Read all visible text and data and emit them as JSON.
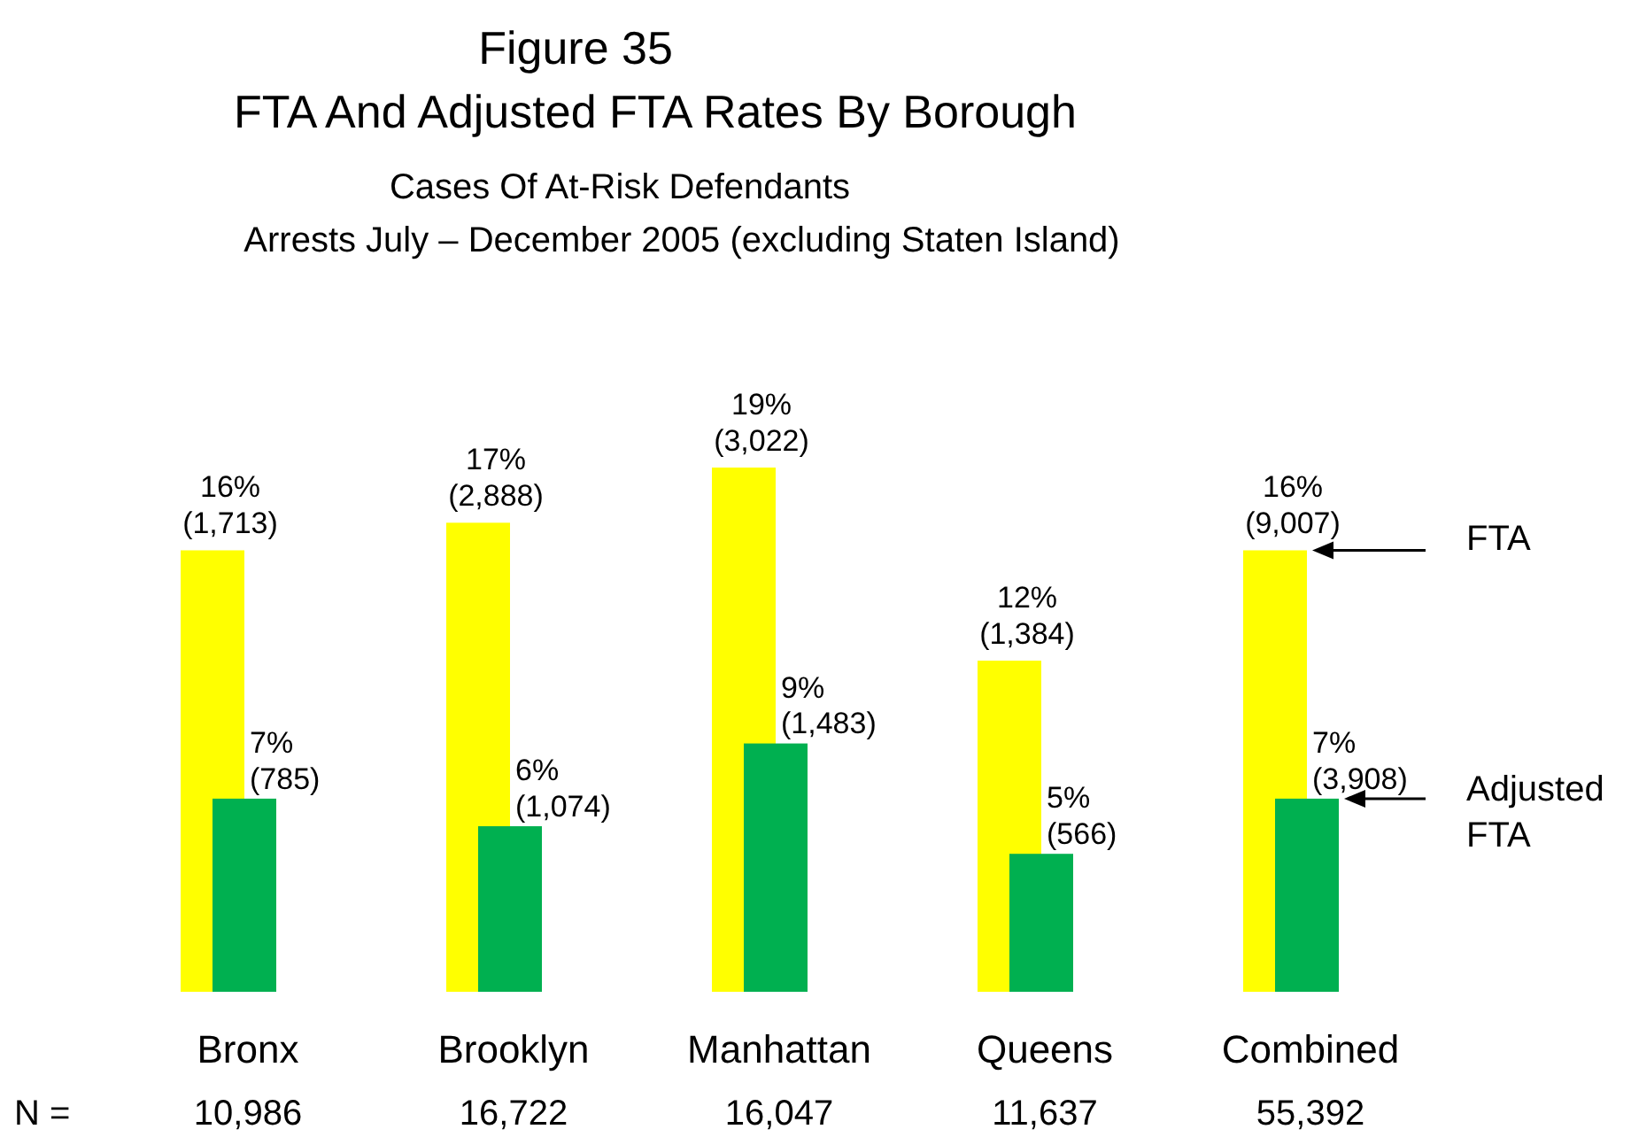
{
  "chart_data": {
    "type": "bar",
    "title": "Figure 35\nFTA And Adjusted FTA Rates By Borough",
    "subtitle": "Cases Of At-Risk Defendants\nArrests July – December 2005 (excluding Staten Island)",
    "categories": [
      "Bronx",
      "Brooklyn",
      "Manhattan",
      "Queens",
      "Combined"
    ],
    "series": [
      {
        "name": "FTA",
        "color": "#ffff00",
        "values": [
          16,
          17,
          19,
          12,
          16
        ],
        "value_labels": [
          "16%\n(1,713)",
          "17%\n(2,888)",
          "19%\n(3,022)",
          "12%\n(1,384)",
          "16%\n(9,007)"
        ]
      },
      {
        "name": "Adjusted\nFTA",
        "color": "#00b050",
        "values": [
          7,
          6,
          9,
          5,
          7
        ],
        "value_labels": [
          "7%\n(785)",
          "6%\n(1,074)",
          "9%\n(1,483)",
          "5%\n(566)",
          "7%\n(3,908)"
        ]
      }
    ],
    "legend": "right",
    "annotations": [
      "N =",
      "10,986",
      "16,722",
      "16,047",
      "11,637",
      "55,392"
    ]
  }
}
